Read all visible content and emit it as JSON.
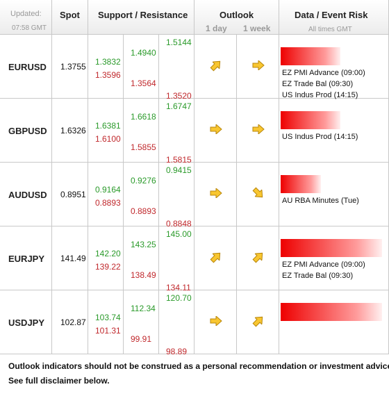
{
  "header": {
    "updated_label": "Updated:",
    "updated_time": "07:58 GMT",
    "spot": "Spot",
    "support_resistance": "Support / Resistance",
    "outlook": "Outlook",
    "outlook_1day": "1 day",
    "outlook_1week": "1 week",
    "data_event_risk": "Data / Event Risk",
    "all_times": "All times GMT"
  },
  "rows": [
    {
      "pair": "EURUSD",
      "spot": "1.3755",
      "resistance": [
        "1.3832",
        "1.4940",
        "1.5144"
      ],
      "support": [
        "1.3596",
        "1.3564",
        "1.3520"
      ],
      "events": [
        "EZ PMI Advance (09:00)",
        "EZ Trade Bal (09:30)",
        "US Indus Prod (14:15)"
      ]
    },
    {
      "pair": "GBPUSD",
      "spot": "1.6326",
      "resistance": [
        "1.6381",
        "1.6618",
        "1.6747"
      ],
      "support": [
        "1.6100",
        "1.5855",
        "1.5815"
      ],
      "events": [
        "US Indus Prod (14:15)"
      ]
    },
    {
      "pair": "AUDUSD",
      "spot": "0.8951",
      "resistance": [
        "0.9164",
        "0.9276",
        "0.9415"
      ],
      "support": [
        "0.8893",
        "0.8893",
        "0.8848"
      ],
      "events": [
        "AU RBA Minutes (Tue)"
      ]
    },
    {
      "pair": "EURJPY",
      "spot": "141.49",
      "resistance": [
        "142.20",
        "143.25",
        "145.00"
      ],
      "support": [
        "139.22",
        "138.49",
        "134.11"
      ],
      "events": [
        "EZ PMI Advance (09:00)",
        "EZ Trade Bal (09:30)"
      ]
    },
    {
      "pair": "USDJPY",
      "spot": "102.87",
      "resistance": [
        "103.74",
        "112.34",
        "120.70"
      ],
      "support": [
        "101.31",
        "99.91",
        "98.89"
      ],
      "events": []
    }
  ],
  "footer": [
    "Outlook indicators should not be construed as a personal recommendation or investment advice.",
    "See full disclaimer below."
  ]
}
